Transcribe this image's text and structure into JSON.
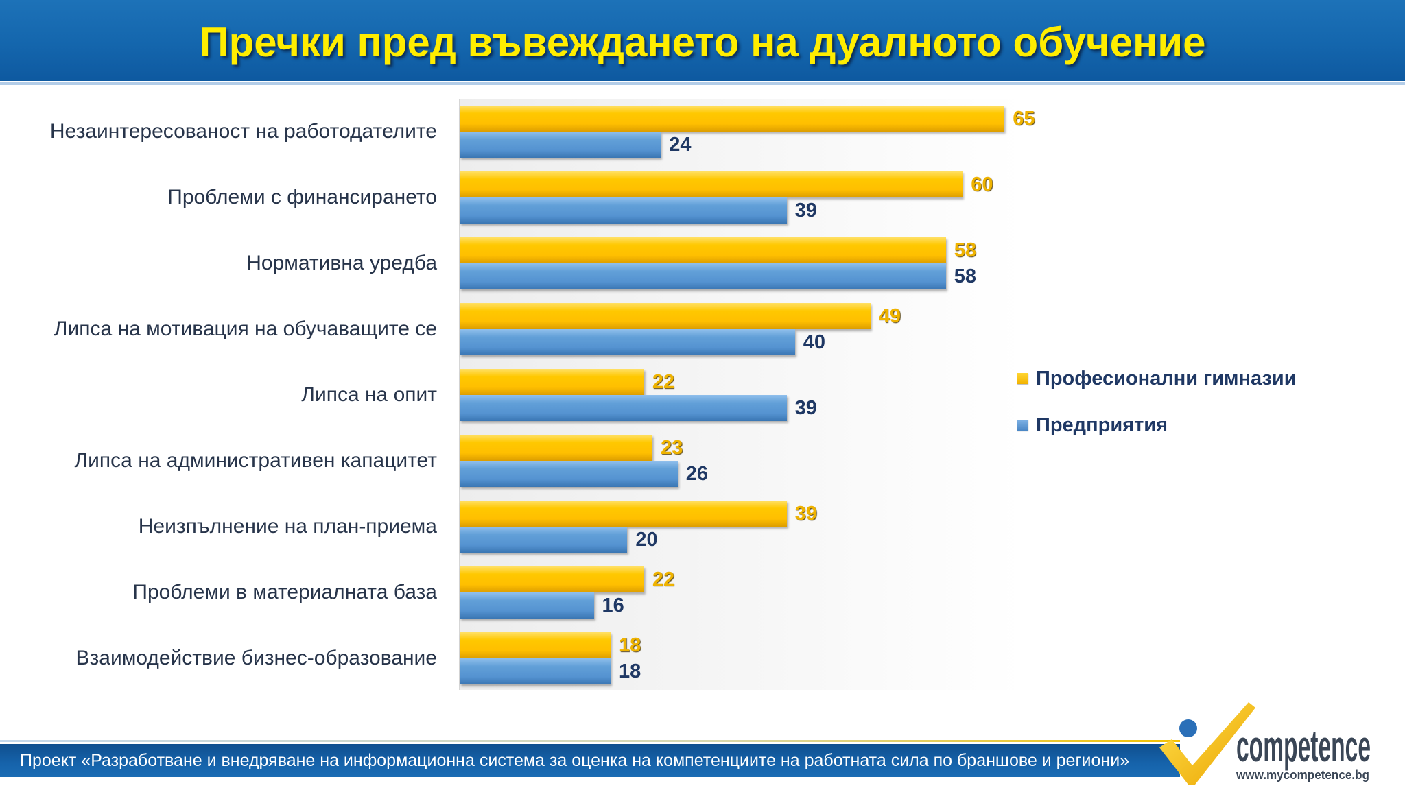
{
  "chart_data": {
    "type": "bar",
    "orientation": "horizontal",
    "title": "Пречки пред въвеждането на дуалното обучение",
    "categories": [
      "Незаинтересованост на работодателите",
      "Проблеми с финансирането",
      "Нормативна уредба",
      "Липса на мотивация на обучаващите се",
      "Липса на опит",
      "Липса на административен капацитет",
      "Неизпълнение на план-приема",
      "Проблеми в материалната база",
      "Взаимодействие бизнес-образование"
    ],
    "series": [
      {
        "name": "Професионални гимназии",
        "values": [
          65,
          60,
          58,
          49,
          22,
          23,
          39,
          22,
          18
        ],
        "color": "#ffc000",
        "label_color": "#efb300"
      },
      {
        "name": "Предприятия",
        "values": [
          24,
          39,
          58,
          40,
          39,
          26,
          20,
          16,
          18
        ],
        "color": "#5b9bd5",
        "label_color": "#1f3864"
      }
    ],
    "xlabel": "",
    "ylabel": "",
    "legend": "right",
    "grid": false
  },
  "footer": {
    "text": "Проект «Разработване и внедряване на информационна система за оценка на компетенциите на работната сила по браншове и региони»"
  },
  "logo": {
    "name": "competence",
    "website": "www.mycompetence.bg"
  },
  "colors": {
    "header": "#1466ad",
    "title": "#ffed00",
    "footer": "#1663ab"
  }
}
